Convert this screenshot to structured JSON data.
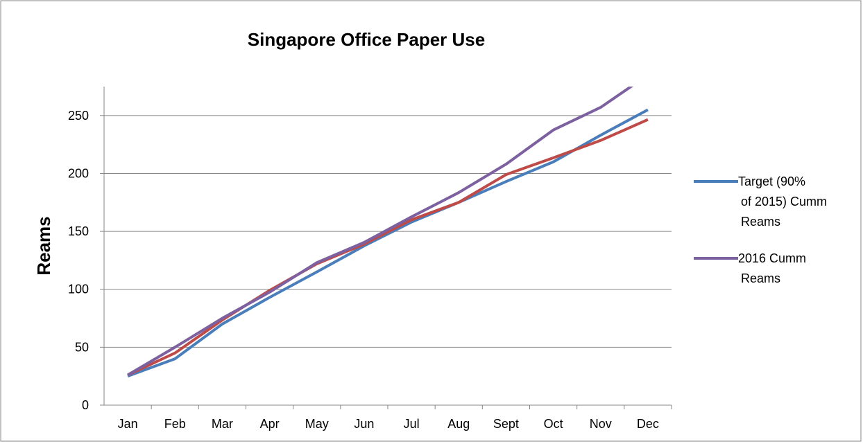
{
  "chart_data": {
    "type": "line",
    "title": "Singapore Office Paper Use",
    "y_label": "Reams",
    "categories": [
      "Jan",
      "Feb",
      "Mar",
      "Apr",
      "May",
      "Jun",
      "Jul",
      "Aug",
      "Sept",
      "Oct",
      "Nov",
      "Dec"
    ],
    "series": [
      {
        "name": "Target (90% of 2015) Cumm Reams",
        "color": "#4a7ebb",
        "values": [
          25,
          40,
          70,
          93,
          115,
          137.5,
          158,
          175,
          193,
          210,
          233,
          255
        ]
      },
      {
        "color": "#be4b48",
        "values": [
          26,
          45,
          73.5,
          99,
          122,
          139,
          160,
          175,
          199,
          213.5,
          228.5,
          246.5
        ]
      },
      {
        "name": "2016 Cumm Reams",
        "color": "#7d60a0",
        "values": [
          26,
          50,
          75,
          97.5,
          123,
          140.5,
          162.5,
          183.5,
          208,
          237.5,
          257,
          285
        ]
      }
    ],
    "ylim": [
      0,
      275
    ],
    "yticks": [
      0,
      50,
      100,
      150,
      200,
      250
    ],
    "grid": true,
    "legend": "right"
  }
}
